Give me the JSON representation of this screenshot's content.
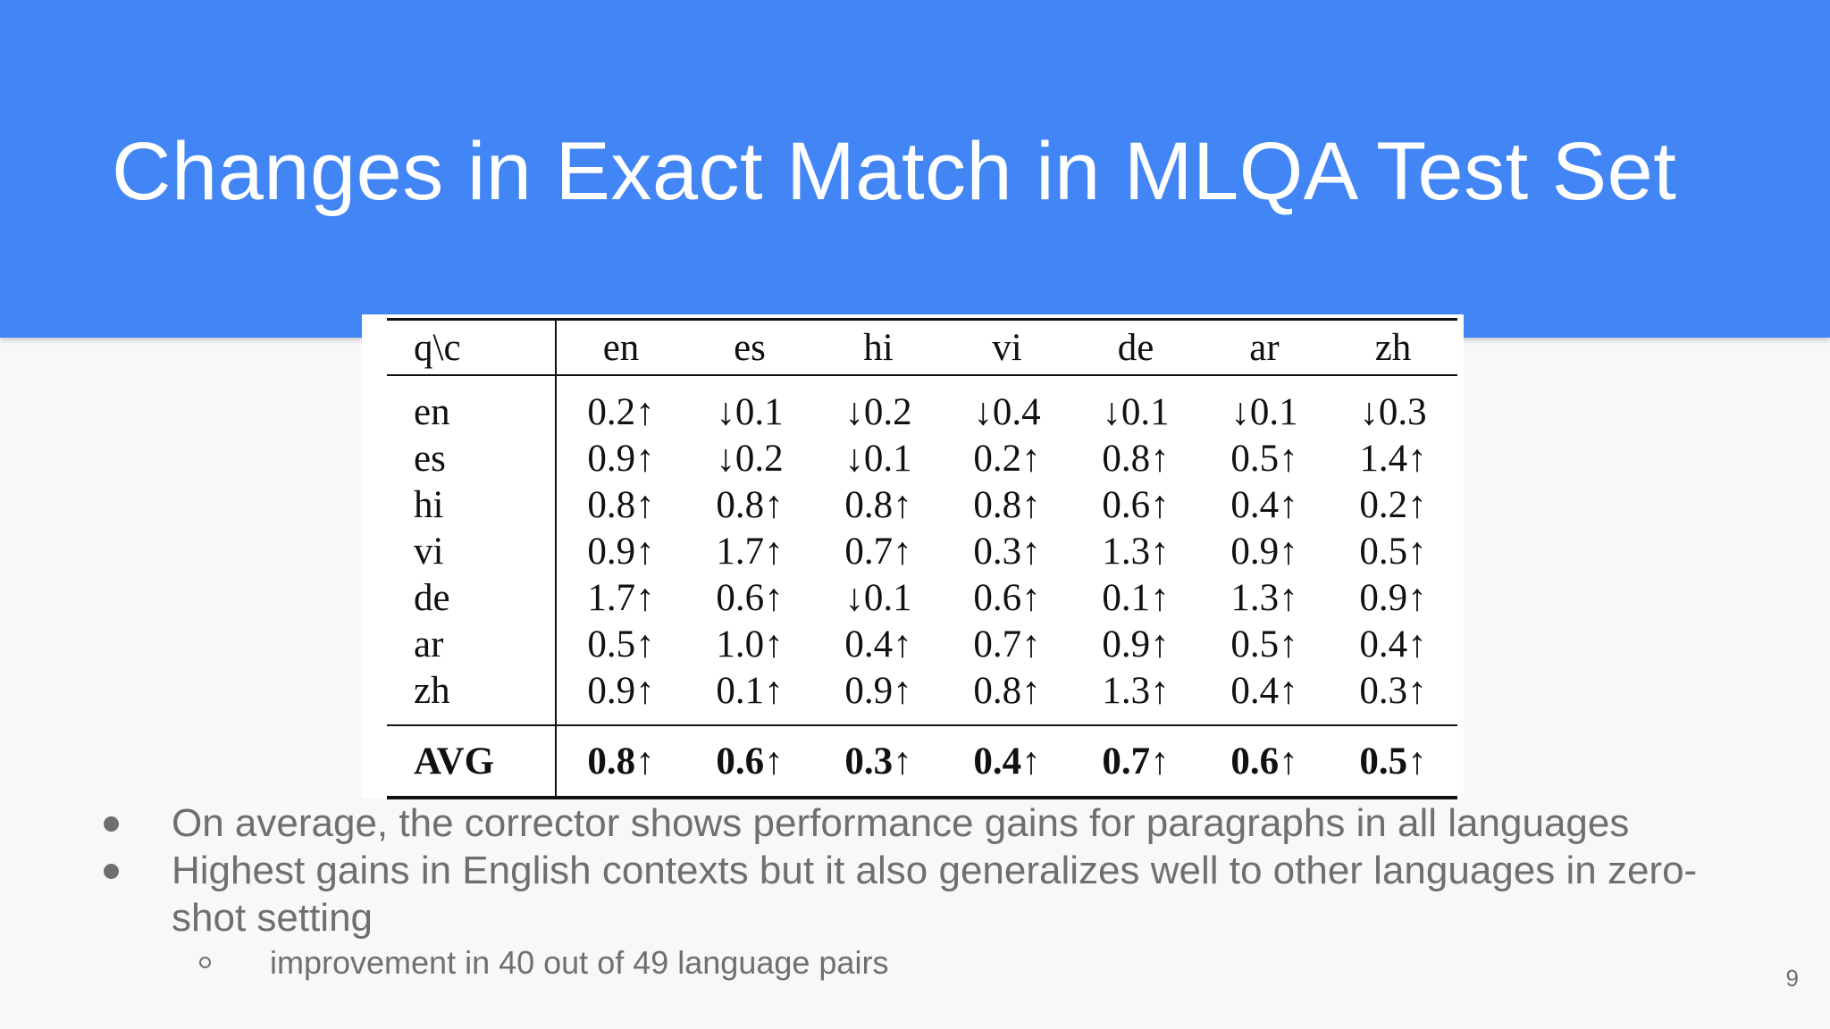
{
  "slide": {
    "title": "Changes in Exact Match in MLQA Test Set",
    "page_number": "9"
  },
  "table": {
    "corner": "q\\c",
    "columns": [
      "en",
      "es",
      "hi",
      "vi",
      "de",
      "ar",
      "zh"
    ],
    "rows": [
      {
        "label": "en",
        "cells": [
          "0.2↑",
          "↓0.1",
          "↓0.2",
          "↓0.4",
          "↓0.1",
          "↓0.1",
          "↓0.3"
        ]
      },
      {
        "label": "es",
        "cells": [
          "0.9↑",
          "↓0.2",
          "↓0.1",
          "0.2↑",
          "0.8↑",
          "0.5↑",
          "1.4↑"
        ]
      },
      {
        "label": "hi",
        "cells": [
          "0.8↑",
          "0.8↑",
          "0.8↑",
          "0.8↑",
          "0.6↑",
          "0.4↑",
          "0.2↑"
        ]
      },
      {
        "label": "vi",
        "cells": [
          "0.9↑",
          "1.7↑",
          "0.7↑",
          "0.3↑",
          "1.3↑",
          "0.9↑",
          "0.5↑"
        ]
      },
      {
        "label": "de",
        "cells": [
          "1.7↑",
          "0.6↑",
          "↓0.1",
          "0.6↑",
          "0.1↑",
          "1.3↑",
          "0.9↑"
        ]
      },
      {
        "label": "ar",
        "cells": [
          "0.5↑",
          "1.0↑",
          "0.4↑",
          "0.7↑",
          "0.9↑",
          "0.5↑",
          "0.4↑"
        ]
      },
      {
        "label": "zh",
        "cells": [
          "0.9↑",
          "0.1↑",
          "0.9↑",
          "0.8↑",
          "1.3↑",
          "0.4↑",
          "0.3↑"
        ]
      }
    ],
    "avg": {
      "label": "AVG",
      "cells": [
        "0.8↑",
        "0.6↑",
        "0.3↑",
        "0.4↑",
        "0.7↑",
        "0.6↑",
        "0.5↑"
      ]
    }
  },
  "bullets": [
    {
      "text": "On average, the corrector shows performance gains for paragraphs in all languages"
    },
    {
      "text": "Highest gains in English contexts but it also generalizes well to other languages in zero-shot setting"
    }
  ],
  "sub_bullets": [
    {
      "text": "improvement in 40 out of 49 language pairs"
    }
  ]
}
